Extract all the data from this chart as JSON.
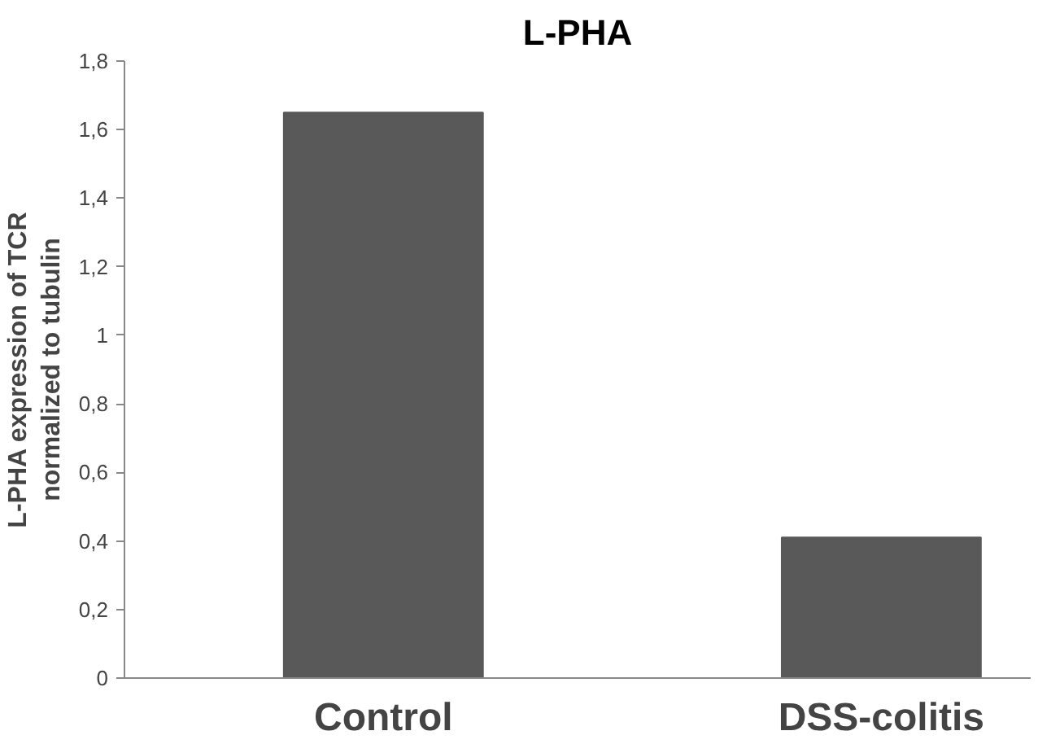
{
  "chart_data": {
    "type": "bar",
    "title": "L-PHA",
    "ylabel": "L-PHA expression of TCR\nnormalized to tubulin",
    "categories": [
      "Control",
      "DSS-colitis"
    ],
    "values": [
      1.65,
      0.41
    ],
    "color": "#595959",
    "ylim": [
      0,
      1.8
    ],
    "yticks": [
      0,
      {
        "value": 0.2,
        "label": "0,2"
      },
      {
        "value": 0.4,
        "label": "0,4"
      },
      {
        "value": 0.6,
        "label": "0,6"
      },
      {
        "value": 0.8,
        "label": "0,8"
      },
      1,
      {
        "value": 1.2,
        "label": "1,2"
      },
      {
        "value": 1.4,
        "label": "1,4"
      },
      {
        "value": 1.6,
        "label": "1,6"
      },
      {
        "value": 1.8,
        "label": "1,8"
      }
    ],
    "grid": false
  }
}
